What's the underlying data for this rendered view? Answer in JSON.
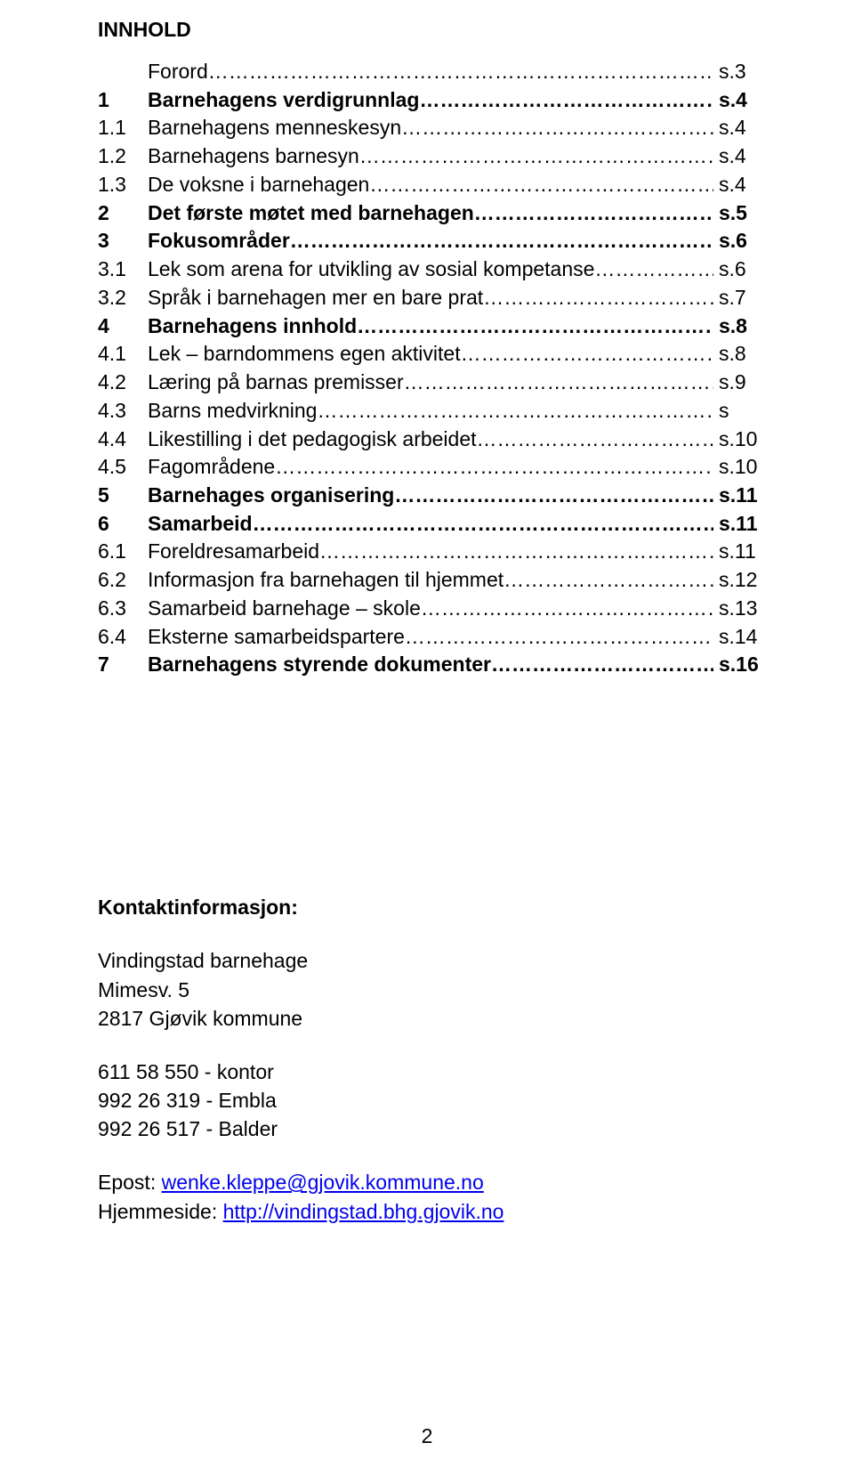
{
  "title": "INNHOLD",
  "toc": [
    {
      "num": "",
      "label": "Forord",
      "page": "s.3",
      "bold": false,
      "indent": true
    },
    {
      "num": "1",
      "label": "Barnehagens verdigrunnlag",
      "page": "s.4",
      "bold": true,
      "indent": false
    },
    {
      "num": "1.1",
      "label": "Barnehagens menneskesyn",
      "page": "s.4",
      "bold": false,
      "indent": false
    },
    {
      "num": "1.2",
      "label": "Barnehagens barnesyn",
      "page": "s.4",
      "bold": false,
      "indent": false
    },
    {
      "num": "1.3",
      "label": "De voksne i barnehagen",
      "page": "s.4",
      "bold": false,
      "indent": false
    },
    {
      "num": "2",
      "label": "Det første møtet med barnehagen",
      "page": "s.5",
      "bold": true,
      "indent": false
    },
    {
      "num": "3",
      "label": "Fokusområder",
      "page": "s.6",
      "bold": true,
      "indent": false
    },
    {
      "num": "3.1",
      "label": "Lek som arena for utvikling av sosial kompetanse",
      "page": "s.6",
      "bold": false,
      "indent": false
    },
    {
      "num": "3.2",
      "label": "Språk i barnehagen mer en bare prat",
      "page": "s.7",
      "bold": false,
      "indent": false
    },
    {
      "num": "4",
      "label": "Barnehagens innhold",
      "page": "s.8",
      "bold": true,
      "indent": false
    },
    {
      "num": "4.1",
      "label": "Lek – barndommens egen aktivitet",
      "page": "s.8",
      "bold": false,
      "indent": false
    },
    {
      "num": "4.2",
      "label": "Læring på barnas premisser",
      "page": "s.9",
      "bold": false,
      "indent": false
    },
    {
      "num": "4.3",
      "label": "Barns medvirkning",
      "page": "s",
      "bold": false,
      "indent": false
    },
    {
      "num": "4.4",
      "label": "Likestilling i det pedagogisk arbeidet",
      "page": "s.10",
      "bold": false,
      "indent": false
    },
    {
      "num": "4.5",
      "label": "Fagområdene",
      "page": "s.10",
      "bold": false,
      "indent": false
    },
    {
      "num": "5",
      "label": "Barnehages organisering",
      "page": "s.11",
      "bold": true,
      "indent": false
    },
    {
      "num": "6",
      "label": "Samarbeid",
      "page": "s.11",
      "bold": true,
      "indent": false
    },
    {
      "num": "6.1",
      "label": "Foreldresamarbeid",
      "page": "s.11",
      "bold": false,
      "indent": false
    },
    {
      "num": "6.2",
      "label": "Informasjon fra barnehagen til hjemmet",
      "page": "s.12",
      "bold": false,
      "indent": false
    },
    {
      "num": "6.3",
      "label": "Samarbeid barnehage – skole",
      "page": "s.13",
      "bold": false,
      "indent": false
    },
    {
      "num": "6.4",
      "label": "Eksterne samarbeidspartere",
      "page": "s.14",
      "bold": false,
      "indent": false
    },
    {
      "num": "7",
      "label": "Barnehagens styrende dokumenter",
      "page": "s.16",
      "bold": true,
      "indent": false
    }
  ],
  "contact": {
    "heading": "Kontaktinformasjon:",
    "address": [
      "Vindingstad barnehage",
      "Mimesv. 5",
      "2817 Gjøvik kommune"
    ],
    "phones": [
      "611 58 550 - kontor",
      "992 26 319 - Embla",
      "992 26 517 - Balder"
    ],
    "email_label": "Epost: ",
    "email": "wenke.kleppe@gjovik.kommune.no",
    "website_label": "Hjemmeside: ",
    "website": "http://vindingstad.bhg.gjovik.no"
  },
  "page_number": "2"
}
